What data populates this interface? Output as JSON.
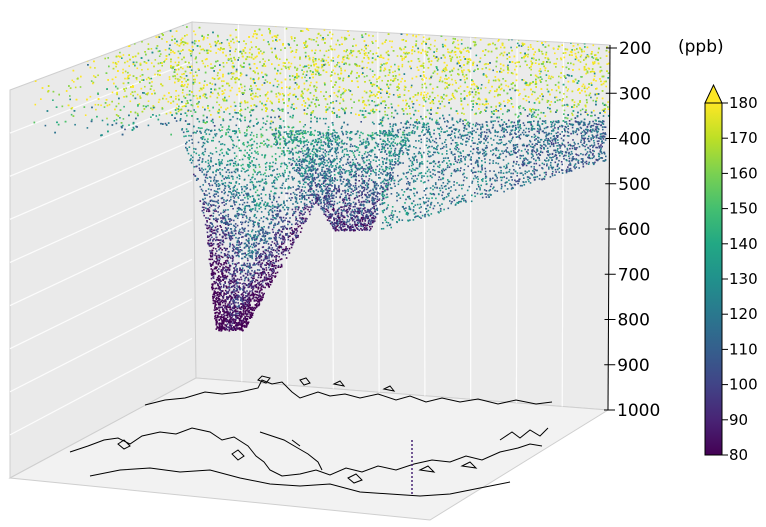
{
  "chart_data": {
    "type": "scatter",
    "subtype": "3d-scatter-volume",
    "title": "",
    "z_axis": {
      "ticks": [
        "200",
        "300",
        "400",
        "500",
        "600",
        "700",
        "800",
        "900",
        "1000"
      ],
      "range": [
        200,
        1000
      ],
      "inverted": true
    },
    "colorbar": {
      "unit": "(ppb)",
      "ticks": [
        "80",
        "90",
        "100",
        "110",
        "120",
        "130",
        "140",
        "150",
        "160",
        "170",
        "180"
      ],
      "range": [
        80,
        180
      ],
      "extend": "max",
      "colormap": "viridis"
    },
    "floor_map": "coastlines",
    "grid": true,
    "background": "#eaeaea"
  }
}
